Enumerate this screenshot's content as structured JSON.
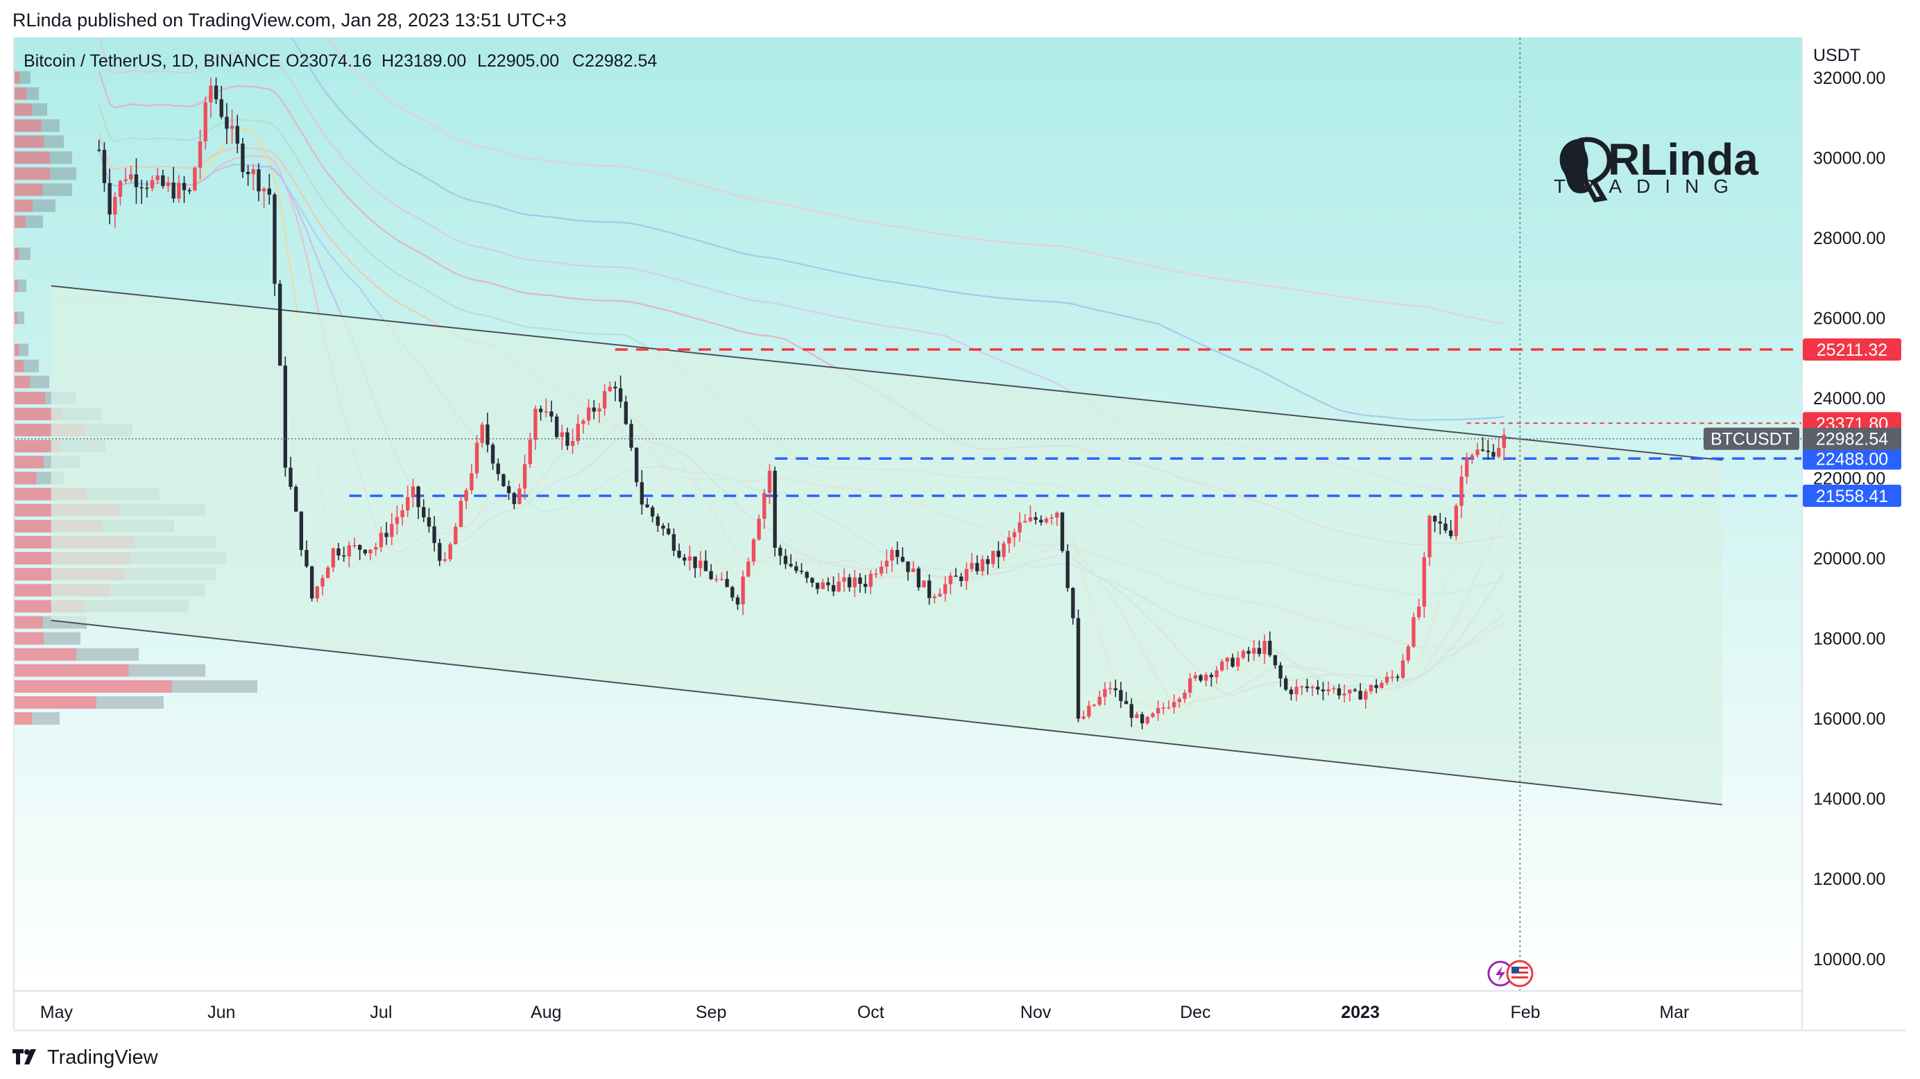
{
  "header": {
    "published": "RLinda published on TradingView.com, Jan 28, 2023 13:51 UTC+3"
  },
  "legend": {
    "symbol": "Bitcoin / TetherUS, 1D, BINANCE",
    "open": "O23074.16",
    "high": "H23189.00",
    "low": "L22905.00",
    "close": "C22982.54"
  },
  "footer": {
    "brand": "TradingView"
  },
  "watermark": {
    "name": "RLinda",
    "subtitle": "TRADING"
  },
  "colors": {
    "bull": "#ef4d5d",
    "bear": "#262b35",
    "resistance": "#f23645",
    "support": "#2962ff",
    "channel_fill": "#d7f1e5",
    "bg_top": "#b0ece9",
    "bg_bottom": "#ffffff"
  },
  "icons": [
    "lightning-icon",
    "us-flag-icon",
    "tradingview-logo-icon"
  ],
  "chart_data": {
    "type": "candlestick",
    "symbol": "BTCUSDT",
    "interval": "1D",
    "exchange": "BINANCE",
    "currency_label": "USDT",
    "ylim": [
      9200,
      33000
    ],
    "x_range": [
      "2022-04-23",
      "2023-03-25"
    ],
    "y_ticks": [
      "32000.00",
      "30000.00",
      "28000.00",
      "26000.00",
      "24000.00",
      "22000.00",
      "20000.00",
      "18000.00",
      "16000.00",
      "14000.00",
      "12000.00",
      "10000.00"
    ],
    "x_ticks": [
      {
        "date": "2022-05-01",
        "label": "May"
      },
      {
        "date": "2022-06-01",
        "label": "Jun"
      },
      {
        "date": "2022-07-01",
        "label": "Jul"
      },
      {
        "date": "2022-08-01",
        "label": "Aug"
      },
      {
        "date": "2022-09-01",
        "label": "Sep"
      },
      {
        "date": "2022-10-01",
        "label": "Oct"
      },
      {
        "date": "2022-11-01",
        "label": "Nov"
      },
      {
        "date": "2022-12-01",
        "label": "Dec"
      },
      {
        "date": "2023-01-01",
        "label": "2023"
      },
      {
        "date": "2023-02-01",
        "label": "Feb"
      },
      {
        "date": "2023-03-01",
        "label": "Mar"
      }
    ],
    "last_price": {
      "value": 22982.54,
      "label": "22982.54",
      "ticker": "BTCUSDT"
    },
    "levels": [
      {
        "value": 25211.32,
        "label": "25211.32",
        "kind": "resistance",
        "from": "2022-08-14"
      },
      {
        "value": 23371.8,
        "label": "23371.80",
        "kind": "resistance",
        "from": "2023-01-21"
      },
      {
        "value": 22488.0,
        "label": "22488.00",
        "kind": "support",
        "from": "2022-09-13"
      },
      {
        "value": 21558.41,
        "label": "21558.41",
        "kind": "support",
        "from": "2022-06-25"
      }
    ],
    "channel": {
      "upper": [
        {
          "date": "2022-04-30",
          "price": 26800
        },
        {
          "date": "2023-03-10",
          "price": 22450
        }
      ],
      "lower": [
        {
          "date": "2022-04-30",
          "price": 18450
        },
        {
          "date": "2023-03-10",
          "price": 13850
        }
      ]
    },
    "vertical_marker": "2023-01-31",
    "price_path": [
      [
        "2022-05-09",
        30200
      ],
      [
        "2022-05-11",
        28800
      ],
      [
        "2022-05-14",
        29600
      ],
      [
        "2022-05-20",
        29300
      ],
      [
        "2022-05-26",
        29100
      ],
      [
        "2022-05-30",
        31800
      ],
      [
        "2022-06-05",
        29900
      ],
      [
        "2022-06-10",
        29100
      ],
      [
        "2022-06-13",
        22400
      ],
      [
        "2022-06-18",
        19000
      ],
      [
        "2022-06-22",
        20200
      ],
      [
        "2022-06-30",
        20300
      ],
      [
        "2022-07-07",
        21600
      ],
      [
        "2022-07-13",
        19800
      ],
      [
        "2022-07-20",
        23200
      ],
      [
        "2022-07-26",
        21200
      ],
      [
        "2022-07-30",
        23800
      ],
      [
        "2022-08-05",
        22900
      ],
      [
        "2022-08-14",
        24400
      ],
      [
        "2022-08-19",
        21400
      ],
      [
        "2022-08-26",
        20200
      ],
      [
        "2022-09-06",
        19000
      ],
      [
        "2022-09-12",
        22200
      ],
      [
        "2022-09-13",
        20200
      ],
      [
        "2022-09-20",
        19300
      ],
      [
        "2022-09-30",
        19400
      ],
      [
        "2022-10-05",
        20300
      ],
      [
        "2022-10-12",
        19100
      ],
      [
        "2022-10-25",
        20100
      ],
      [
        "2022-10-29",
        20800
      ],
      [
        "2022-11-05",
        21200
      ],
      [
        "2022-11-08",
        18500
      ],
      [
        "2022-11-09",
        15900
      ],
      [
        "2022-11-15",
        16800
      ],
      [
        "2022-11-21",
        15800
      ],
      [
        "2022-12-01",
        17000
      ],
      [
        "2022-12-14",
        17800
      ],
      [
        "2022-12-18",
        16700
      ],
      [
        "2022-12-25",
        16800
      ],
      [
        "2022-12-31",
        16550
      ],
      [
        "2023-01-08",
        17100
      ],
      [
        "2023-01-12",
        18800
      ],
      [
        "2023-01-14",
        20900
      ],
      [
        "2023-01-18",
        20700
      ],
      [
        "2023-01-21",
        22700
      ],
      [
        "2023-01-25",
        22600
      ],
      [
        "2023-01-28",
        22982.54
      ]
    ],
    "volume_profile": {
      "price_range": [
        16000,
        32000
      ],
      "rows": [
        [
          32000,
          0.06,
          0.35
        ],
        [
          31600,
          0.1,
          0.5
        ],
        [
          31200,
          0.14,
          0.55
        ],
        [
          30800,
          0.2,
          0.6
        ],
        [
          30400,
          0.22,
          0.6
        ],
        [
          30000,
          0.26,
          0.62
        ],
        [
          29600,
          0.28,
          0.58
        ],
        [
          29200,
          0.26,
          0.5
        ],
        [
          28800,
          0.18,
          0.45
        ],
        [
          28400,
          0.12,
          0.4
        ],
        [
          27600,
          0.06,
          0.3
        ],
        [
          26800,
          0.04,
          0.3
        ],
        [
          26000,
          0.03,
          0.3
        ],
        [
          25200,
          0.05,
          0.35
        ],
        [
          24800,
          0.1,
          0.4
        ],
        [
          24400,
          0.15,
          0.45
        ],
        [
          24000,
          0.28,
          0.5
        ],
        [
          23600,
          0.4,
          0.55
        ],
        [
          23200,
          0.55,
          0.6
        ],
        [
          22800,
          0.42,
          0.5
        ],
        [
          22400,
          0.3,
          0.45
        ],
        [
          22000,
          0.22,
          0.45
        ],
        [
          21600,
          0.68,
          0.5
        ],
        [
          21200,
          0.9,
          0.55
        ],
        [
          20800,
          0.75,
          0.55
        ],
        [
          20400,
          0.95,
          0.6
        ],
        [
          20000,
          1.0,
          0.55
        ],
        [
          19600,
          0.95,
          0.55
        ],
        [
          19200,
          0.9,
          0.5
        ],
        [
          18800,
          0.82,
          0.4
        ],
        [
          18400,
          0.33,
          0.4
        ],
        [
          18000,
          0.3,
          0.45
        ],
        [
          17600,
          0.58,
          0.5
        ],
        [
          17200,
          0.9,
          0.6
        ],
        [
          16800,
          1.15,
          0.65
        ],
        [
          16400,
          0.7,
          0.55
        ],
        [
          16000,
          0.2,
          0.4
        ]
      ]
    }
  }
}
